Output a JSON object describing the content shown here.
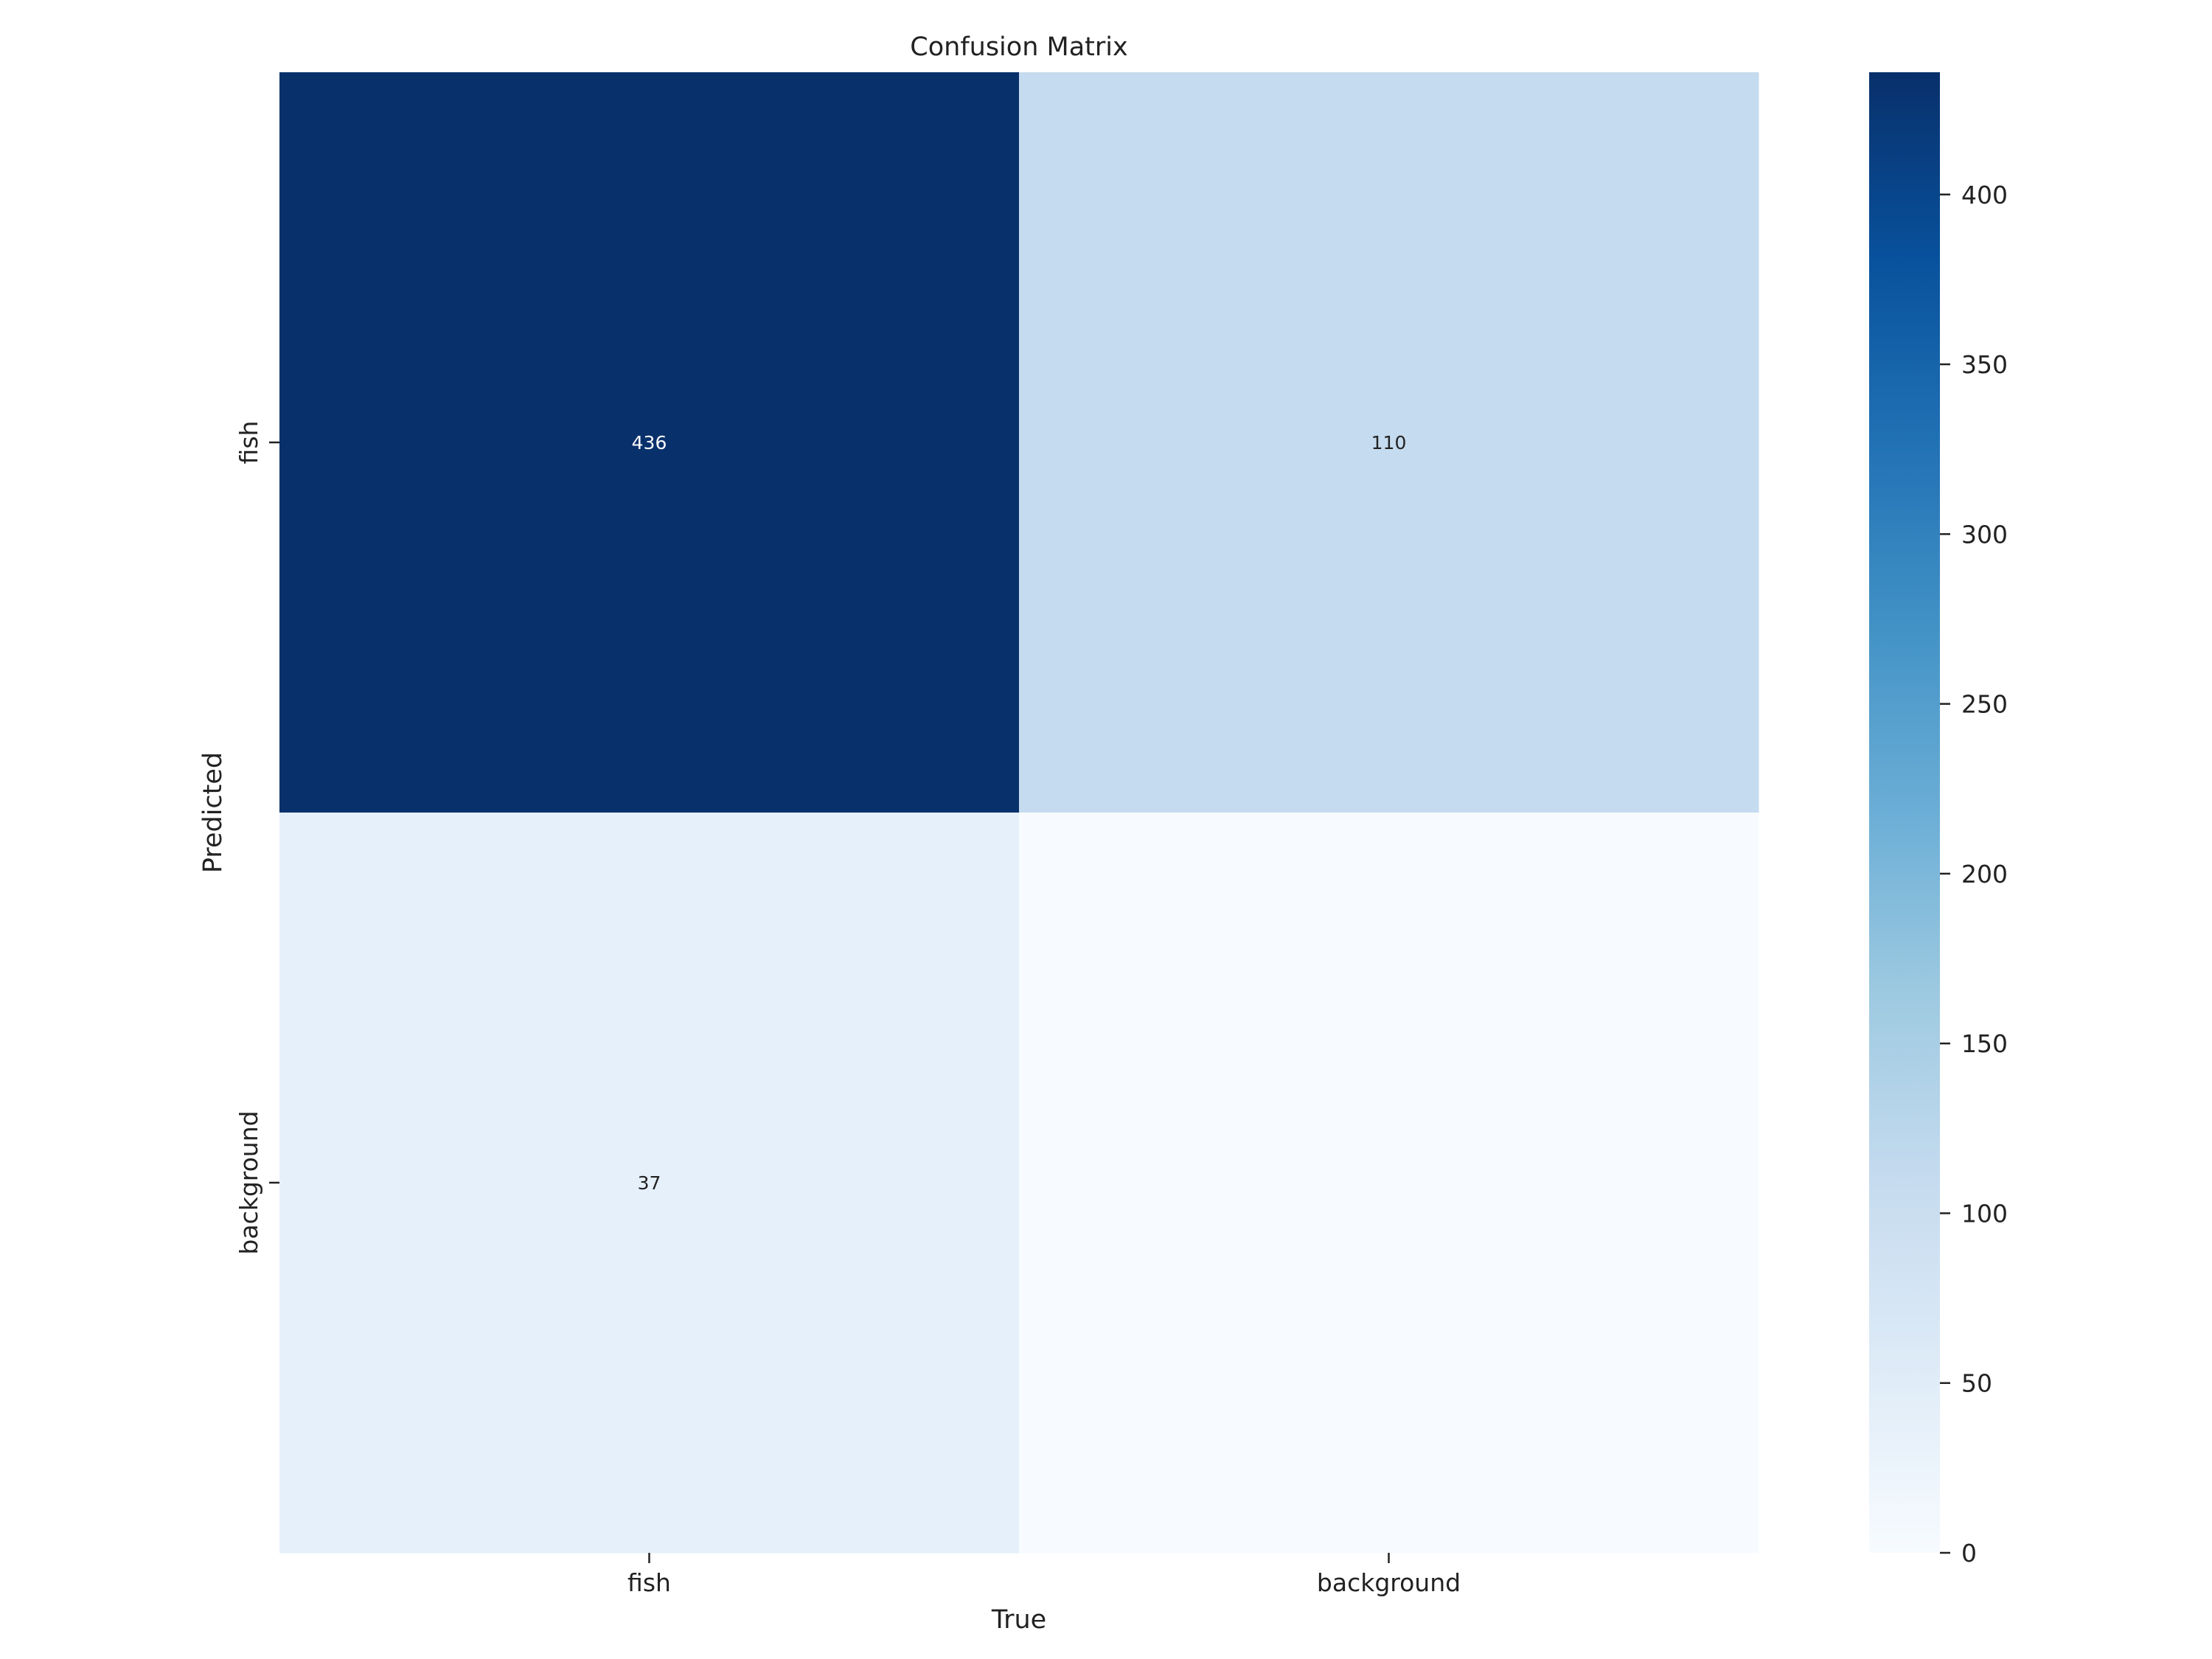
{
  "chart_data": {
    "type": "heatmap",
    "title": "Confusion Matrix",
    "xlabel": "True",
    "ylabel": "Predicted",
    "x_categories": [
      "fish",
      "background"
    ],
    "y_categories": [
      "fish",
      "background"
    ],
    "values": [
      [
        436,
        110
      ],
      [
        37,
        0
      ]
    ],
    "annotations": [
      [
        "436",
        "110"
      ],
      [
        "37",
        ""
      ]
    ],
    "colormap": "Blues",
    "colorbar": {
      "range": [
        0,
        436
      ],
      "ticks": [
        0,
        50,
        100,
        150,
        200,
        250,
        300,
        350,
        400
      ]
    },
    "colors": {
      "max": "#08306b",
      "min": "#f7fbff"
    }
  }
}
